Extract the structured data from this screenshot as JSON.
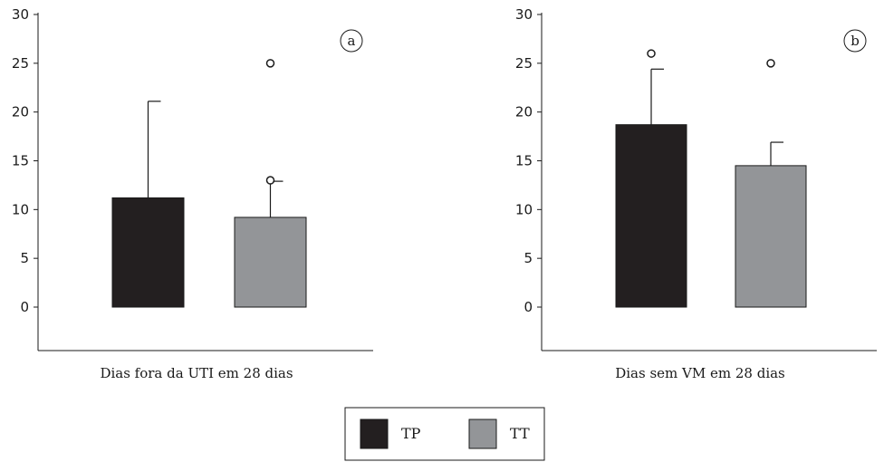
{
  "colors": {
    "TP": "#231f20",
    "TT": "#939598"
  },
  "legend": {
    "items": [
      {
        "key": "TP",
        "label": "TP"
      },
      {
        "key": "TT",
        "label": "TT"
      }
    ]
  },
  "chart_data": [
    {
      "type": "bar",
      "panel_label": "a",
      "categories": [
        "TP",
        "TT"
      ],
      "values": [
        11.2,
        9.2
      ],
      "error_upper": [
        21.1,
        12.9
      ],
      "outliers": [
        {
          "category": "TT",
          "values": [
            13.0,
            25.0
          ]
        }
      ],
      "xlabel": "Dias fora da UTI em 28 dias",
      "ylabel": "",
      "ylim": [
        -4.5,
        30
      ],
      "yticks": [
        0,
        5,
        10,
        15,
        20,
        25,
        30
      ]
    },
    {
      "type": "bar",
      "panel_label": "b",
      "categories": [
        "TP",
        "TT"
      ],
      "values": [
        18.7,
        14.5
      ],
      "error_upper": [
        24.4,
        16.9
      ],
      "outliers": [
        {
          "category": "TP",
          "values": [
            26.0
          ]
        },
        {
          "category": "TT",
          "values": [
            25.0
          ]
        }
      ],
      "xlabel": "Dias sem VM em 28 dias",
      "ylabel": "",
      "ylim": [
        -4.5,
        30
      ],
      "yticks": [
        0,
        5,
        10,
        15,
        20,
        25,
        30
      ]
    }
  ]
}
